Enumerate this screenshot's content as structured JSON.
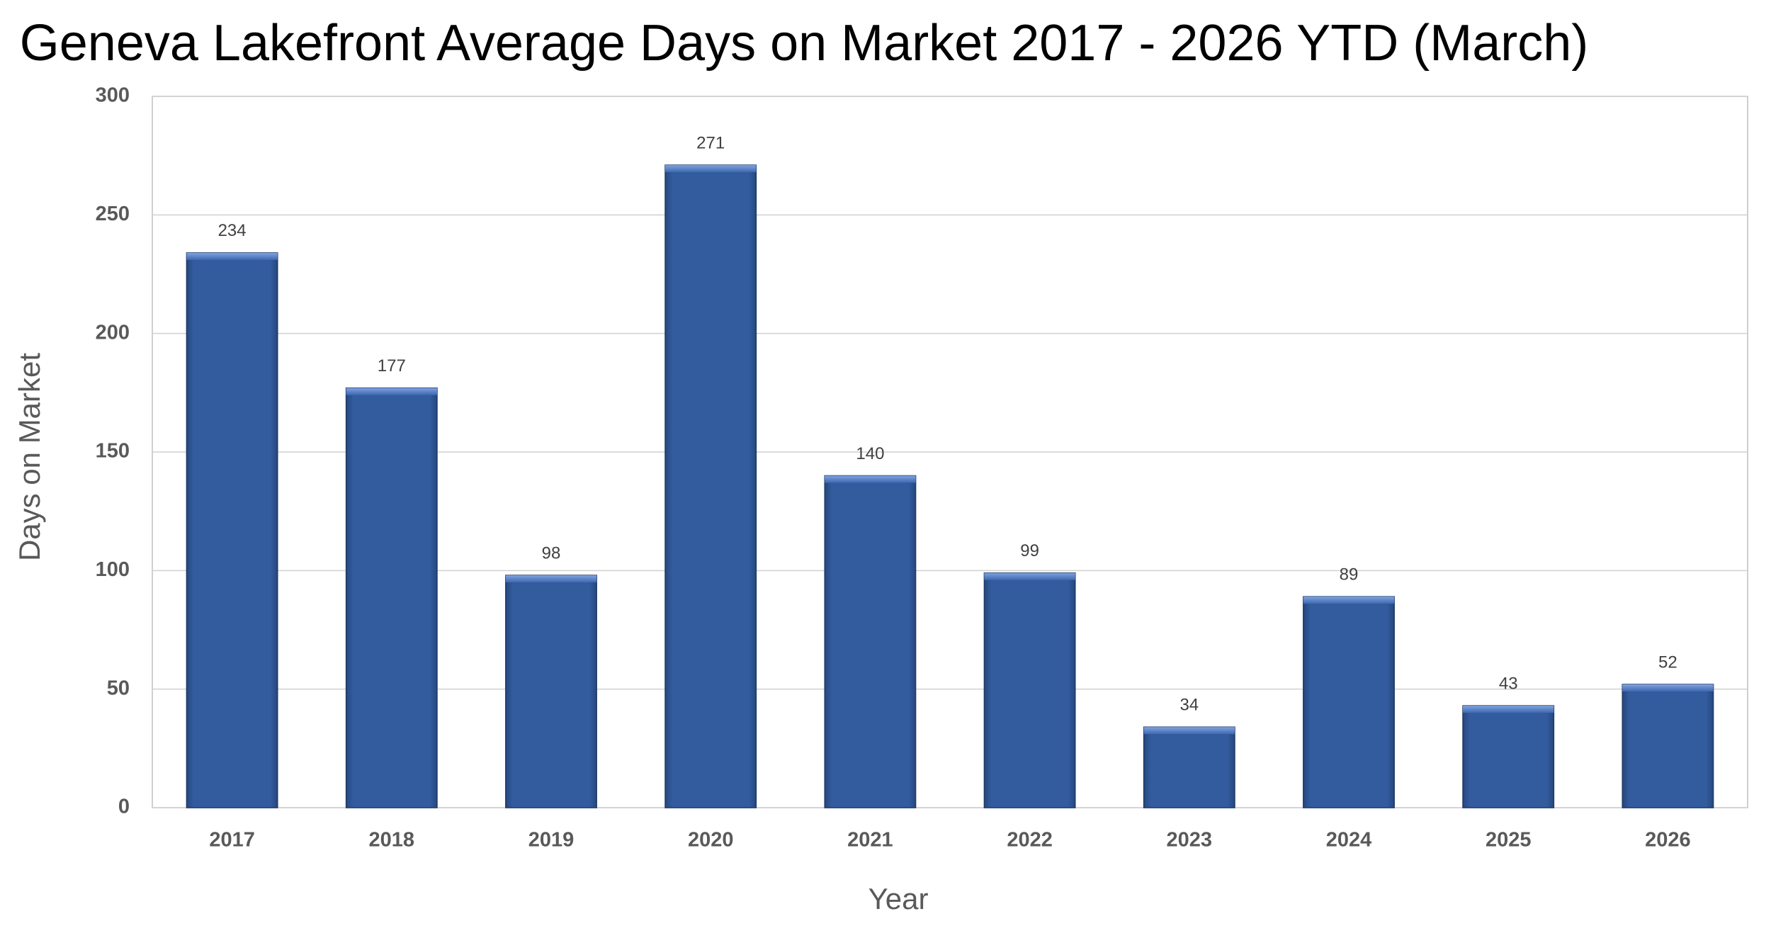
{
  "chart_data": {
    "type": "bar",
    "title": "Geneva Lakefront Average Days on Market 2017 - 2026 YTD (March)",
    "x_label": "Year",
    "y_label": "Days on Market",
    "categories": [
      "2017",
      "2018",
      "2019",
      "2020",
      "2021",
      "2022",
      "2023",
      "2024",
      "2025",
      "2026"
    ],
    "values": [
      234,
      177,
      98,
      271,
      140,
      99,
      34,
      89,
      43,
      52
    ],
    "color": "#335c9f",
    "ylim": [
      0,
      300
    ],
    "yticks": [
      0,
      50,
      100,
      150,
      200,
      250,
      300
    ],
    "grid": true
  }
}
